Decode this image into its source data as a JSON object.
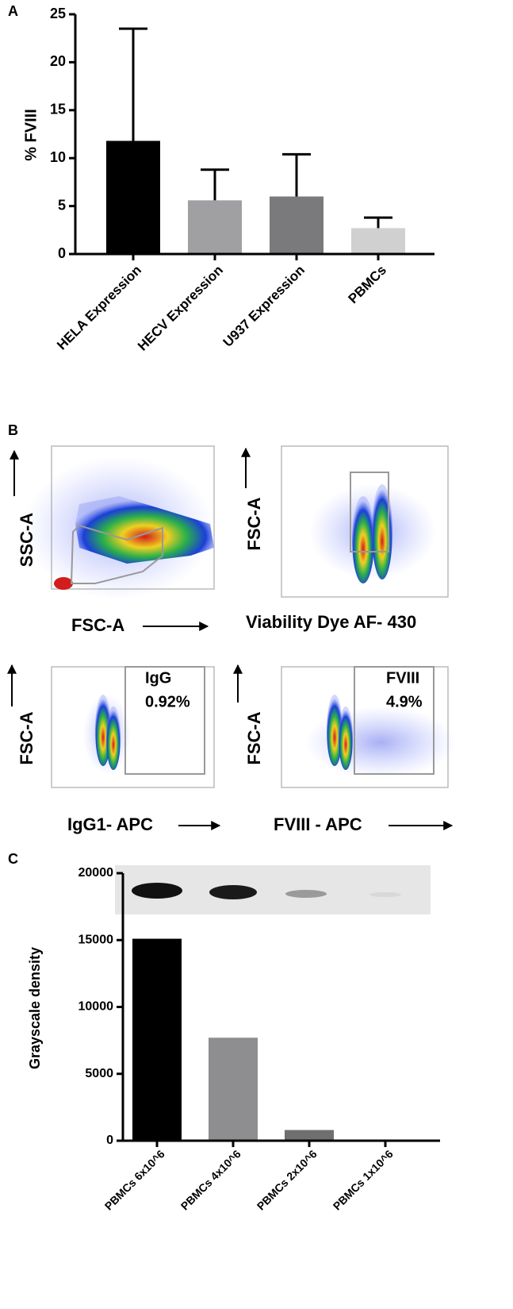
{
  "chart_data": [
    {
      "type": "bar",
      "panel_label": "A",
      "y_label": "% FVIII",
      "categories": [
        "HELA Expression",
        "HECV Expression",
        "U937 Expression",
        "PBMCs"
      ],
      "values": [
        11.8,
        5.6,
        6.0,
        2.7
      ],
      "errors": [
        11.7,
        3.2,
        4.4,
        1.1
      ],
      "colors": [
        "#000000",
        "#a0a0a2",
        "#7a7a7c",
        "#d0d0d0"
      ],
      "ylim": [
        0,
        25
      ],
      "yticks": [
        0,
        5,
        10,
        15,
        20,
        25
      ]
    },
    {
      "type": "bar",
      "panel_label": "C",
      "y_label": "Grayscale density",
      "categories": [
        "PBMCs 6x10^6",
        "PBMCs 4x10^6",
        "PBMCs 2x10^6",
        "PBMCs 1x10^6"
      ],
      "values": [
        15100,
        7700,
        800,
        0
      ],
      "colors": [
        "#000000",
        "#8e8e90",
        "#6f6f6f",
        "#cccccc"
      ],
      "ylim": [
        0,
        20000
      ],
      "yticks": [
        0,
        5000,
        10000,
        15000,
        20000
      ]
    }
  ],
  "panel_b": {
    "label": "B",
    "plots": [
      {
        "y_label": "SSC-A",
        "x_label": "FSC-A"
      },
      {
        "y_label": "FSC-A",
        "x_label": "Viability Dye AF- 430"
      },
      {
        "y_label": "FSC-A",
        "x_label": "IgG1- APC",
        "gate_name": "IgG",
        "gate_value": "0.92%"
      },
      {
        "y_label": "FSC-A",
        "x_label": "FVIII - APC",
        "gate_name": "FVIII",
        "gate_value": "4.9%"
      }
    ]
  }
}
